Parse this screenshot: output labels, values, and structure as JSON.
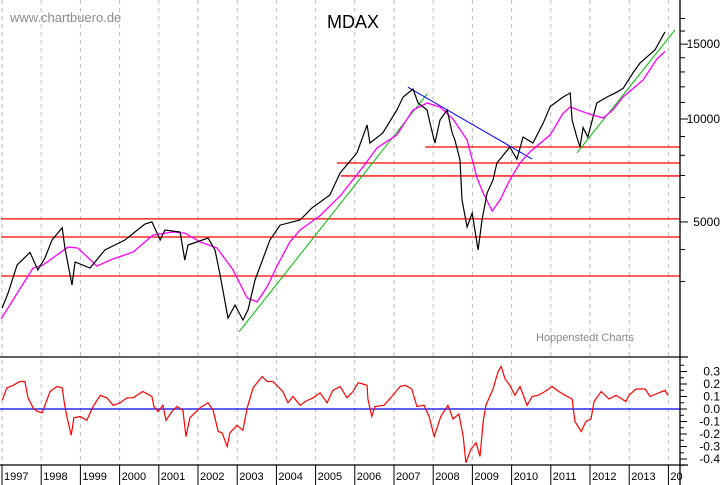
{
  "watermark": "www.chartbuero.de",
  "credit": "Hoppenstedt Charts",
  "colors": {
    "price": "#000000",
    "moving_average": "#ff00ff",
    "support_lines": "#ff0000",
    "uptrend": "#00bb00",
    "downtrend": "#0000ff",
    "oscillator": "#ff0000",
    "zero_line": "#0000ff",
    "grid": "#bbbbbb"
  },
  "x_axis": {
    "tick_labels": [
      "1997",
      "1998",
      "1999",
      "2000",
      "2001",
      "2002",
      "2003",
      "2004",
      "2005",
      "2006",
      "2007",
      "2008",
      "2009",
      "2010",
      "2011",
      "2012",
      "2013",
      "20"
    ],
    "grid": "vertical dashed per year"
  },
  "chart_data": [
    {
      "type": "line",
      "title": "MDAX",
      "y_scale": "compressed (log-like)",
      "ylim": [
        1700,
        17500
      ],
      "xlim": [
        1997.0,
        2014.3
      ],
      "y_tick_labels": [
        "15000",
        "10000",
        "5000"
      ],
      "y_ticks": [
        15000,
        10000,
        5000
      ],
      "price": [
        [
          1997.03,
          2300
        ],
        [
          1997.18,
          2683
        ],
        [
          1997.41,
          3494
        ],
        [
          1997.74,
          3900
        ],
        [
          1997.94,
          3339
        ],
        [
          1998.12,
          3715
        ],
        [
          1998.3,
          4329
        ],
        [
          1998.56,
          4780
        ],
        [
          1998.63,
          4050
        ],
        [
          1998.81,
          2902
        ],
        [
          1998.89,
          3588
        ],
        [
          1999.27,
          3400
        ],
        [
          1999.65,
          3981
        ],
        [
          2000.16,
          4329
        ],
        [
          2000.67,
          4920
        ],
        [
          2000.85,
          5000
        ],
        [
          2001.06,
          4329
        ],
        [
          2001.18,
          4695
        ],
        [
          2001.57,
          4620
        ],
        [
          2001.69,
          3650
        ],
        [
          2001.77,
          4152
        ],
        [
          2002.28,
          4400
        ],
        [
          2002.46,
          3981
        ],
        [
          2002.59,
          3188
        ],
        [
          2002.79,
          2062
        ],
        [
          2002.97,
          2372
        ],
        [
          2003.17,
          2018
        ],
        [
          2003.3,
          2250
        ],
        [
          2003.48,
          3041
        ],
        [
          2003.86,
          4329
        ],
        [
          2004.12,
          4880
        ],
        [
          2004.63,
          5075
        ],
        [
          2004.93,
          5560
        ],
        [
          2005.39,
          6110
        ],
        [
          2005.65,
          7119
        ],
        [
          2006.08,
          8120
        ],
        [
          2006.34,
          9652
        ],
        [
          2006.41,
          8647
        ],
        [
          2006.74,
          9198
        ],
        [
          2007.1,
          10536
        ],
        [
          2007.26,
          11344
        ],
        [
          2007.51,
          11858
        ],
        [
          2007.64,
          10968
        ],
        [
          2007.87,
          10536
        ],
        [
          2007.94,
          9800
        ],
        [
          2008.07,
          8647
        ],
        [
          2008.2,
          9943
        ],
        [
          2008.38,
          10536
        ],
        [
          2008.51,
          9198
        ],
        [
          2008.58,
          8810
        ],
        [
          2008.71,
          7760
        ],
        [
          2008.76,
          5897
        ],
        [
          2008.89,
          4807
        ],
        [
          2009.02,
          5355
        ],
        [
          2009.17,
          3981
        ],
        [
          2009.27,
          5075
        ],
        [
          2009.4,
          6200
        ],
        [
          2009.55,
          6791
        ],
        [
          2009.65,
          7610
        ],
        [
          2009.98,
          8434
        ],
        [
          2010.16,
          7800
        ],
        [
          2010.32,
          8972
        ],
        [
          2010.57,
          8647
        ],
        [
          2010.83,
          9750
        ],
        [
          2011.01,
          10750
        ],
        [
          2011.34,
          11344
        ],
        [
          2011.52,
          11596
        ],
        [
          2011.57,
          9943
        ],
        [
          2011.69,
          8972
        ],
        [
          2011.77,
          8434
        ],
        [
          2011.85,
          9500
        ],
        [
          2011.97,
          8972
        ],
        [
          2012.2,
          10968
        ],
        [
          2012.46,
          11344
        ],
        [
          2012.71,
          11650
        ],
        [
          2012.87,
          11900
        ],
        [
          2013.12,
          12930
        ],
        [
          2013.3,
          13622
        ],
        [
          2013.68,
          14563
        ],
        [
          2013.94,
          15930
        ]
      ],
      "moving_average": [
        [
          1997.0,
          2040
        ],
        [
          1997.82,
          3400
        ],
        [
          1998.07,
          3494
        ],
        [
          1998.71,
          4080
        ],
        [
          1998.96,
          4050
        ],
        [
          1999.45,
          3460
        ],
        [
          1999.78,
          3650
        ],
        [
          2000.37,
          3915
        ],
        [
          2000.88,
          4510
        ],
        [
          2001.39,
          4620
        ],
        [
          2001.69,
          4580
        ],
        [
          2002.08,
          4260
        ],
        [
          2002.51,
          4050
        ],
        [
          2002.92,
          3339
        ],
        [
          2003.28,
          2550
        ],
        [
          2003.53,
          2450
        ],
        [
          2003.79,
          2850
        ],
        [
          2004.04,
          3460
        ],
        [
          2004.37,
          4260
        ],
        [
          2004.63,
          4695
        ],
        [
          2005.14,
          5250
        ],
        [
          2005.65,
          6070
        ],
        [
          2006.23,
          7400
        ],
        [
          2006.59,
          8380
        ],
        [
          2007.1,
          9090
        ],
        [
          2007.51,
          10536
        ],
        [
          2007.87,
          10968
        ],
        [
          2008.2,
          10720
        ],
        [
          2008.53,
          10000
        ],
        [
          2008.89,
          8810
        ],
        [
          2009.14,
          6900
        ],
        [
          2009.3,
          6200
        ],
        [
          2009.53,
          5430
        ],
        [
          2009.73,
          5897
        ],
        [
          2009.98,
          6791
        ],
        [
          2010.24,
          7610
        ],
        [
          2010.49,
          8170
        ],
        [
          2011.01,
          9090
        ],
        [
          2011.34,
          10340
        ],
        [
          2011.52,
          10720
        ],
        [
          2011.95,
          10340
        ],
        [
          2012.36,
          10060
        ],
        [
          2012.61,
          10536
        ],
        [
          2012.87,
          11344
        ],
        [
          2013.38,
          12451
        ],
        [
          2013.73,
          13900
        ],
        [
          2013.94,
          14450
        ]
      ],
      "horizontal_levels": [
        {
          "value": 8434,
          "from": 2007.82
        },
        {
          "value": 7610,
          "from": 2005.57
        },
        {
          "value": 6980,
          "from": 2005.67
        },
        {
          "value": 5120,
          "from": 1997.0
        },
        {
          "value": 4436,
          "from": 1997.0
        },
        {
          "value": 3160,
          "from": 1997.0
        }
      ],
      "trend_lines": [
        {
          "kind": "uptrend",
          "from": [
            2003.07,
            1760
          ],
          "to": [
            2007.87,
            11540
          ]
        },
        {
          "kind": "uptrend",
          "from": [
            2011.69,
            8120
          ],
          "to": [
            2014.19,
            16080
          ]
        },
        {
          "kind": "downtrend",
          "from": [
            2007.38,
            11980
          ],
          "to": [
            2010.55,
            7810
          ]
        }
      ]
    },
    {
      "type": "line",
      "ylim": [
        -0.45,
        0.38
      ],
      "y_tick_labels": [
        "0.3",
        "0.2",
        "0.1",
        "0.0",
        "-0.1",
        "-0.2",
        "-0.3",
        "-0.4"
      ],
      "y_ticks": [
        0.3,
        0.2,
        0.1,
        0.0,
        -0.1,
        -0.2,
        -0.3,
        -0.4
      ],
      "reference_line": 0.0,
      "values": [
        [
          1997.03,
          0.07
        ],
        [
          1997.15,
          0.17
        ],
        [
          1997.31,
          0.19
        ],
        [
          1997.48,
          0.22
        ],
        [
          1997.61,
          0.22
        ],
        [
          1997.69,
          0.09
        ],
        [
          1997.82,
          0.01
        ],
        [
          1997.92,
          -0.02
        ],
        [
          1998.05,
          -0.03
        ],
        [
          1998.12,
          0.03
        ],
        [
          1998.25,
          0.14
        ],
        [
          1998.43,
          0.18
        ],
        [
          1998.56,
          0.17
        ],
        [
          1998.63,
          0.02
        ],
        [
          1998.68,
          -0.06
        ],
        [
          1998.79,
          -0.21
        ],
        [
          1998.86,
          -0.07
        ],
        [
          1999.02,
          -0.06
        ],
        [
          1999.19,
          -0.09
        ],
        [
          1999.35,
          0.02
        ],
        [
          1999.53,
          0.11
        ],
        [
          1999.7,
          0.09
        ],
        [
          1999.86,
          0.03
        ],
        [
          2000.04,
          0.05
        ],
        [
          2000.21,
          0.09
        ],
        [
          2000.37,
          0.09
        ],
        [
          2000.62,
          0.14
        ],
        [
          2000.85,
          0.1
        ],
        [
          2000.9,
          0.02
        ],
        [
          2001.01,
          -0.02
        ],
        [
          2001.13,
          0.03
        ],
        [
          2001.21,
          -0.09
        ],
        [
          2001.36,
          -0.02
        ],
        [
          2001.49,
          0.02
        ],
        [
          2001.64,
          -0.01
        ],
        [
          2001.72,
          -0.22
        ],
        [
          2001.82,
          -0.07
        ],
        [
          2001.95,
          -0.03
        ],
        [
          2002.08,
          0.01
        ],
        [
          2002.28,
          0.05
        ],
        [
          2002.41,
          -0.01
        ],
        [
          2002.54,
          -0.18
        ],
        [
          2002.64,
          -0.19
        ],
        [
          2002.77,
          -0.3
        ],
        [
          2002.84,
          -0.19
        ],
        [
          2003.02,
          -0.13
        ],
        [
          2003.17,
          -0.17
        ],
        [
          2003.28,
          0.01
        ],
        [
          2003.43,
          0.17
        ],
        [
          2003.66,
          0.26
        ],
        [
          2003.79,
          0.22
        ],
        [
          2003.94,
          0.22
        ],
        [
          2004.19,
          0.14
        ],
        [
          2004.32,
          0.05
        ],
        [
          2004.45,
          0.1
        ],
        [
          2004.63,
          0.03
        ],
        [
          2004.76,
          0.06
        ],
        [
          2004.96,
          0.09
        ],
        [
          2005.14,
          0.13
        ],
        [
          2005.32,
          0.05
        ],
        [
          2005.47,
          0.15
        ],
        [
          2005.65,
          0.18
        ],
        [
          2005.83,
          0.09
        ],
        [
          2005.98,
          0.14
        ],
        [
          2006.11,
          0.21
        ],
        [
          2006.23,
          0.2
        ],
        [
          2006.34,
          0.19
        ],
        [
          2006.36,
          0.08
        ],
        [
          2006.46,
          -0.06
        ],
        [
          2006.54,
          0.02
        ],
        [
          2006.77,
          0.03
        ],
        [
          2006.97,
          0.1
        ],
        [
          2007.18,
          0.18
        ],
        [
          2007.31,
          0.19
        ],
        [
          2007.48,
          0.16
        ],
        [
          2007.61,
          0.02
        ],
        [
          2007.79,
          0.03
        ],
        [
          2007.92,
          -0.06
        ],
        [
          2008.05,
          -0.22
        ],
        [
          2008.22,
          -0.06
        ],
        [
          2008.4,
          0.03
        ],
        [
          2008.53,
          -0.08
        ],
        [
          2008.68,
          -0.04
        ],
        [
          2008.79,
          -0.22
        ],
        [
          2008.86,
          -0.43
        ],
        [
          2008.99,
          -0.32
        ],
        [
          2009.12,
          -0.27
        ],
        [
          2009.22,
          -0.38
        ],
        [
          2009.3,
          -0.1
        ],
        [
          2009.37,
          0.03
        ],
        [
          2009.55,
          0.16
        ],
        [
          2009.68,
          0.3
        ],
        [
          2009.76,
          0.34
        ],
        [
          2009.86,
          0.24
        ],
        [
          2009.98,
          0.19
        ],
        [
          2010.11,
          0.11
        ],
        [
          2010.24,
          0.18
        ],
        [
          2010.42,
          0.03
        ],
        [
          2010.55,
          0.1
        ],
        [
          2010.7,
          0.11
        ],
        [
          2010.88,
          0.14
        ],
        [
          2011.06,
          0.18
        ],
        [
          2011.23,
          0.14
        ],
        [
          2011.39,
          0.11
        ],
        [
          2011.57,
          0.08
        ],
        [
          2011.64,
          -0.1
        ],
        [
          2011.8,
          -0.18
        ],
        [
          2011.92,
          -0.1
        ],
        [
          2012.05,
          -0.08
        ],
        [
          2012.13,
          0.06
        ],
        [
          2012.31,
          0.14
        ],
        [
          2012.51,
          0.08
        ],
        [
          2012.69,
          0.11
        ],
        [
          2012.94,
          0.06
        ],
        [
          2013.02,
          0.11
        ],
        [
          2013.2,
          0.16
        ],
        [
          2013.43,
          0.16
        ],
        [
          2013.56,
          0.1
        ],
        [
          2013.71,
          0.12
        ],
        [
          2013.94,
          0.15
        ],
        [
          2014.01,
          0.11
        ]
      ]
    }
  ]
}
